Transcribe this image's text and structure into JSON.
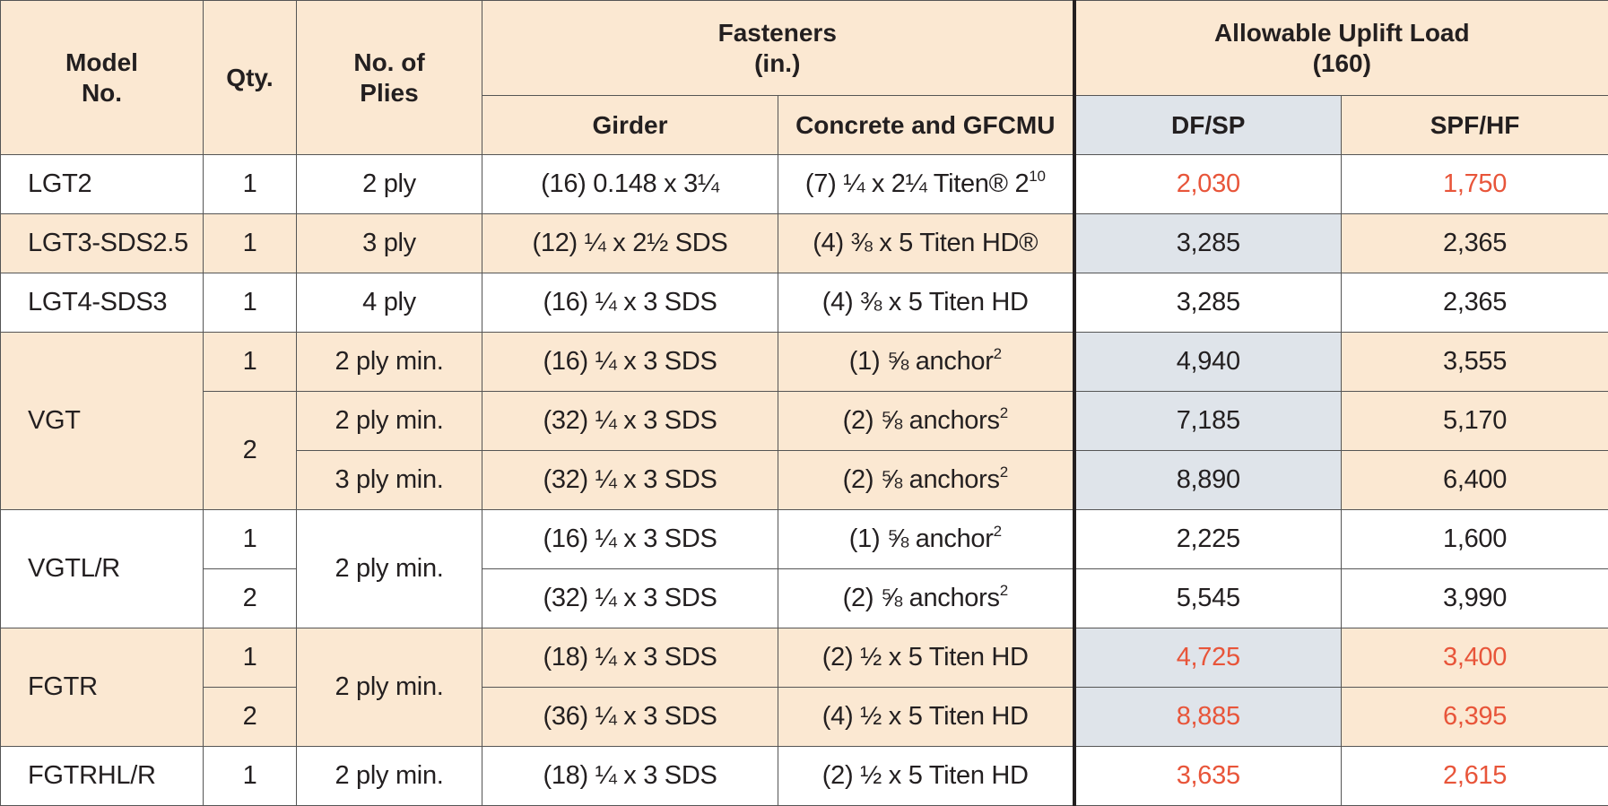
{
  "header": {
    "model_no": [
      "Model",
      "No."
    ],
    "qty": "Qty.",
    "no_of_plies": [
      "No. of",
      "Plies"
    ],
    "fasteners": [
      "Fasteners",
      "(in.)"
    ],
    "allowable_uplift_load": [
      "Allowable Uplift Load",
      "(160)"
    ],
    "girder": "Girder",
    "concrete": "Concrete and GFCMU",
    "df_sp": "DF/SP",
    "spf_hf": "SPF/HF"
  },
  "rows": [
    {
      "model": "LGT2",
      "qty": "1",
      "plies": "2 ply",
      "girder": "(16) 0.148 x 3¼",
      "concrete": "(7) ¼ x 2¼ Titen® 2",
      "concrete_sup": "10",
      "df_sp": "2,030",
      "spf_hf": "1,750",
      "highlight": true
    },
    {
      "model": "LGT3-SDS2.5",
      "qty": "1",
      "plies": "3 ply",
      "girder": "(12) ¼ x 2½ SDS",
      "concrete": "(4) ⅜ x 5 Titen HD®",
      "concrete_sup": "",
      "df_sp": "3,285",
      "spf_hf": "2,365",
      "highlight": false
    },
    {
      "model": "LGT4-SDS3",
      "qty": "1",
      "plies": "4 ply",
      "girder": "(16) ¼ x 3 SDS",
      "concrete": "(4) ⅜ x 5 Titen HD",
      "concrete_sup": "",
      "df_sp": "3,285",
      "spf_hf": "2,365",
      "highlight": false
    },
    {
      "model": "VGT",
      "qty": "1",
      "plies": "2 ply min.",
      "girder": "(16) ¼ x 3 SDS",
      "concrete": "(1) ⅝ anchor",
      "concrete_sup": "2",
      "df_sp": "4,940",
      "spf_hf": "3,555",
      "highlight": false
    },
    {
      "model": "",
      "qty": "2",
      "plies": "2 ply min.",
      "girder": "(32) ¼ x 3 SDS",
      "concrete": "(2) ⅝ anchors",
      "concrete_sup": "2",
      "df_sp": "7,185",
      "spf_hf": "5,170",
      "highlight": false
    },
    {
      "model": "",
      "qty": "",
      "plies": "3 ply min.",
      "girder": "(32) ¼ x 3 SDS",
      "concrete": "(2) ⅝ anchors",
      "concrete_sup": "2",
      "df_sp": "8,890",
      "spf_hf": "6,400",
      "highlight": false
    },
    {
      "model": "VGTL/R",
      "qty": "1",
      "plies": "2 ply min.",
      "girder": "(16) ¼ x 3 SDS",
      "concrete": "(1) ⅝ anchor",
      "concrete_sup": "2",
      "df_sp": "2,225",
      "spf_hf": "1,600",
      "highlight": false
    },
    {
      "model": "",
      "qty": "2",
      "plies": "",
      "girder": "(32) ¼ x 3 SDS",
      "concrete": "(2) ⅝ anchors",
      "concrete_sup": "2",
      "df_sp": "5,545",
      "spf_hf": "3,990",
      "highlight": false
    },
    {
      "model": "FGTR",
      "qty": "1",
      "plies": "2 ply min.",
      "girder": "(18) ¼ x 3 SDS",
      "concrete": "(2) ½ x 5 Titen HD",
      "concrete_sup": "",
      "df_sp": "4,725",
      "spf_hf": "3,400",
      "highlight": true
    },
    {
      "model": "",
      "qty": "2",
      "plies": "",
      "girder": "(36) ¼ x 3 SDS",
      "concrete": "(4) ½ x 5 Titen HD",
      "concrete_sup": "",
      "df_sp": "8,885",
      "spf_hf": "6,395",
      "highlight": true
    },
    {
      "model": "FGTRHL/R",
      "qty": "1",
      "plies": "2 ply min.",
      "girder": "(18) ¼ x 3 SDS",
      "concrete": "(2) ½ x 5 Titen HD",
      "concrete_sup": "",
      "df_sp": "3,635",
      "spf_hf": "2,615",
      "highlight": true
    }
  ],
  "colors": {
    "tan_row": "#fbe8d2",
    "white_row": "#ffffff",
    "load_shade": "#dfe4ea",
    "highlight_text": "#e8553a",
    "text": "#231f20"
  }
}
